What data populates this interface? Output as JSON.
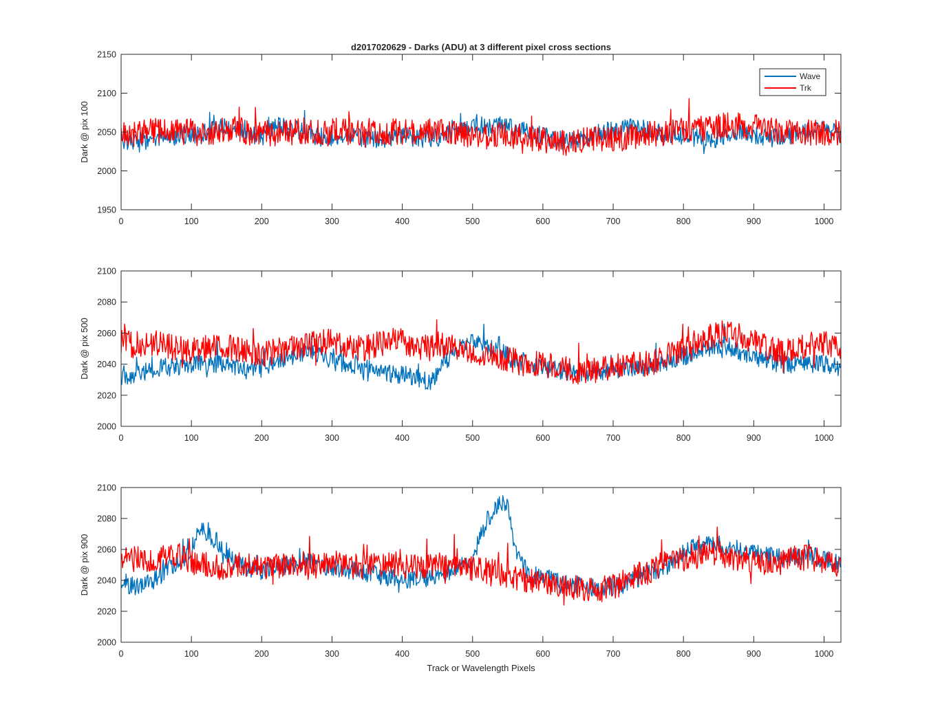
{
  "figure": {
    "title": "d2017020629 - Darks (ADU) at 3 different pixel cross sections",
    "xlabel": "Track or Wavelength Pixels"
  },
  "colors": {
    "wave": "#0072BD",
    "trk": "#FF0000",
    "axes": "#262626"
  },
  "legend": {
    "entries": [
      "Wave",
      "Trk"
    ],
    "placement": "top-right of first panel"
  },
  "chart_data": [
    {
      "type": "line",
      "ylabel": "Dark @ pix 100",
      "xlim": [
        0,
        1024
      ],
      "ylim": [
        1950,
        2150
      ],
      "xticks": [
        0,
        100,
        200,
        300,
        400,
        500,
        600,
        700,
        800,
        900,
        1000
      ],
      "yticks": [
        1950,
        2000,
        2050,
        2100,
        2150
      ],
      "grid": false,
      "series": [
        {
          "name": "Wave",
          "color": "#0072BD",
          "x": [
            0,
            20,
            40,
            60,
            80,
            100,
            120,
            140,
            160,
            180,
            200,
            220,
            240,
            260,
            280,
            300,
            320,
            340,
            360,
            380,
            400,
            420,
            440,
            460,
            480,
            500,
            520,
            540,
            560,
            580,
            600,
            620,
            640,
            660,
            680,
            700,
            720,
            740,
            760,
            780,
            800,
            820,
            840,
            860,
            880,
            900,
            920,
            940,
            960,
            980,
            1000,
            1024
          ],
          "y": [
            2040,
            2038,
            2040,
            2043,
            2045,
            2047,
            2050,
            2055,
            2056,
            2048,
            2043,
            2058,
            2056,
            2050,
            2044,
            2042,
            2045,
            2043,
            2040,
            2041,
            2045,
            2043,
            2040,
            2046,
            2050,
            2057,
            2055,
            2058,
            2055,
            2050,
            2045,
            2040,
            2038,
            2042,
            2050,
            2052,
            2058,
            2056,
            2050,
            2046,
            2044,
            2042,
            2040,
            2044,
            2050,
            2046,
            2042,
            2044,
            2048,
            2052,
            2055,
            2045
          ]
        },
        {
          "name": "Trk",
          "color": "#FF0000",
          "x": [
            0,
            20,
            40,
            60,
            80,
            100,
            120,
            140,
            160,
            180,
            200,
            220,
            240,
            260,
            280,
            300,
            320,
            340,
            360,
            380,
            400,
            420,
            440,
            460,
            480,
            500,
            520,
            540,
            560,
            580,
            600,
            620,
            640,
            660,
            680,
            700,
            720,
            740,
            760,
            780,
            800,
            820,
            840,
            860,
            880,
            900,
            920,
            940,
            960,
            980,
            1000,
            1024
          ],
          "y": [
            2050,
            2048,
            2052,
            2050,
            2049,
            2050,
            2048,
            2052,
            2054,
            2050,
            2049,
            2047,
            2050,
            2052,
            2049,
            2052,
            2050,
            2048,
            2052,
            2050,
            2050,
            2048,
            2052,
            2049,
            2047,
            2045,
            2044,
            2046,
            2044,
            2042,
            2040,
            2038,
            2036,
            2040,
            2042,
            2040,
            2044,
            2046,
            2048,
            2050,
            2052,
            2054,
            2056,
            2058,
            2060,
            2056,
            2053,
            2051,
            2050,
            2049,
            2050,
            2048
          ]
        }
      ]
    },
    {
      "type": "line",
      "ylabel": "Dark @ pix 500",
      "xlim": [
        0,
        1024
      ],
      "ylim": [
        2000,
        2100
      ],
      "xticks": [
        0,
        100,
        200,
        300,
        400,
        500,
        600,
        700,
        800,
        900,
        1000
      ],
      "yticks": [
        2000,
        2020,
        2040,
        2060,
        2080,
        2100
      ],
      "grid": false,
      "series": [
        {
          "name": "Wave",
          "color": "#0072BD",
          "x": [
            0,
            20,
            40,
            60,
            80,
            100,
            120,
            140,
            160,
            180,
            200,
            220,
            240,
            260,
            280,
            300,
            320,
            340,
            360,
            380,
            400,
            420,
            440,
            460,
            480,
            500,
            520,
            540,
            560,
            580,
            600,
            620,
            640,
            660,
            680,
            700,
            720,
            740,
            760,
            780,
            800,
            820,
            840,
            860,
            880,
            900,
            920,
            940,
            960,
            980,
            1000,
            1024
          ],
          "y": [
            2032,
            2034,
            2036,
            2038,
            2038,
            2040,
            2040,
            2040,
            2038,
            2036,
            2038,
            2040,
            2044,
            2048,
            2046,
            2042,
            2040,
            2038,
            2036,
            2034,
            2033,
            2032,
            2028,
            2040,
            2050,
            2055,
            2052,
            2048,
            2042,
            2040,
            2038,
            2036,
            2035,
            2034,
            2035,
            2036,
            2037,
            2038,
            2040,
            2042,
            2045,
            2048,
            2050,
            2052,
            2048,
            2044,
            2042,
            2040,
            2040,
            2040,
            2040,
            2038
          ]
        },
        {
          "name": "Trk",
          "color": "#FF0000",
          "x": [
            0,
            20,
            40,
            60,
            80,
            100,
            120,
            140,
            160,
            180,
            200,
            220,
            240,
            260,
            280,
            300,
            320,
            340,
            360,
            380,
            400,
            420,
            440,
            460,
            480,
            500,
            520,
            540,
            560,
            580,
            600,
            620,
            640,
            660,
            680,
            700,
            720,
            740,
            760,
            780,
            800,
            820,
            840,
            860,
            880,
            900,
            920,
            940,
            960,
            980,
            1000,
            1024
          ],
          "y": [
            2055,
            2052,
            2054,
            2052,
            2050,
            2049,
            2050,
            2052,
            2050,
            2048,
            2046,
            2048,
            2050,
            2052,
            2054,
            2055,
            2052,
            2050,
            2052,
            2054,
            2055,
            2052,
            2050,
            2052,
            2050,
            2048,
            2046,
            2044,
            2042,
            2040,
            2040,
            2038,
            2036,
            2035,
            2036,
            2038,
            2040,
            2040,
            2042,
            2046,
            2050,
            2055,
            2058,
            2060,
            2058,
            2055,
            2050,
            2048,
            2050,
            2052,
            2054,
            2050
          ]
        }
      ]
    },
    {
      "type": "line",
      "ylabel": "Dark @ pix 900",
      "xlabel": "Track or Wavelength Pixels",
      "xlim": [
        0,
        1024
      ],
      "ylim": [
        2000,
        2100
      ],
      "xticks": [
        0,
        100,
        200,
        300,
        400,
        500,
        600,
        700,
        800,
        900,
        1000
      ],
      "yticks": [
        2000,
        2020,
        2040,
        2060,
        2080,
        2100
      ],
      "grid": false,
      "series": [
        {
          "name": "Wave",
          "color": "#0072BD",
          "x": [
            0,
            20,
            40,
            60,
            80,
            100,
            110,
            120,
            140,
            160,
            180,
            200,
            220,
            240,
            260,
            280,
            300,
            320,
            340,
            360,
            380,
            400,
            420,
            440,
            460,
            480,
            500,
            510,
            520,
            530,
            540,
            550,
            560,
            580,
            600,
            620,
            640,
            660,
            680,
            700,
            720,
            740,
            760,
            780,
            800,
            820,
            840,
            860,
            880,
            900,
            920,
            940,
            960,
            980,
            1000,
            1024
          ],
          "y": [
            2038,
            2036,
            2038,
            2045,
            2050,
            2060,
            2075,
            2072,
            2062,
            2052,
            2048,
            2046,
            2048,
            2050,
            2052,
            2050,
            2048,
            2047,
            2046,
            2044,
            2042,
            2040,
            2041,
            2042,
            2044,
            2048,
            2052,
            2068,
            2078,
            2085,
            2092,
            2088,
            2060,
            2044,
            2042,
            2040,
            2038,
            2036,
            2035,
            2036,
            2038,
            2042,
            2046,
            2050,
            2058,
            2062,
            2064,
            2062,
            2060,
            2058,
            2056,
            2054,
            2055,
            2056,
            2054,
            2050
          ]
        },
        {
          "name": "Trk",
          "color": "#FF0000",
          "x": [
            0,
            20,
            40,
            60,
            80,
            100,
            120,
            140,
            160,
            180,
            200,
            220,
            240,
            260,
            280,
            300,
            320,
            340,
            360,
            380,
            400,
            420,
            440,
            460,
            480,
            500,
            520,
            540,
            560,
            580,
            600,
            620,
            640,
            660,
            680,
            700,
            720,
            740,
            760,
            780,
            800,
            820,
            840,
            860,
            880,
            900,
            920,
            940,
            960,
            980,
            1000,
            1024
          ],
          "y": [
            2055,
            2054,
            2052,
            2054,
            2056,
            2052,
            2050,
            2048,
            2050,
            2049,
            2048,
            2050,
            2049,
            2048,
            2050,
            2052,
            2050,
            2049,
            2050,
            2051,
            2050,
            2048,
            2049,
            2050,
            2052,
            2048,
            2046,
            2044,
            2042,
            2040,
            2040,
            2038,
            2036,
            2035,
            2034,
            2036,
            2040,
            2044,
            2048,
            2052,
            2054,
            2056,
            2058,
            2056,
            2054,
            2052,
            2050,
            2052,
            2054,
            2055,
            2052,
            2048
          ]
        }
      ]
    }
  ]
}
